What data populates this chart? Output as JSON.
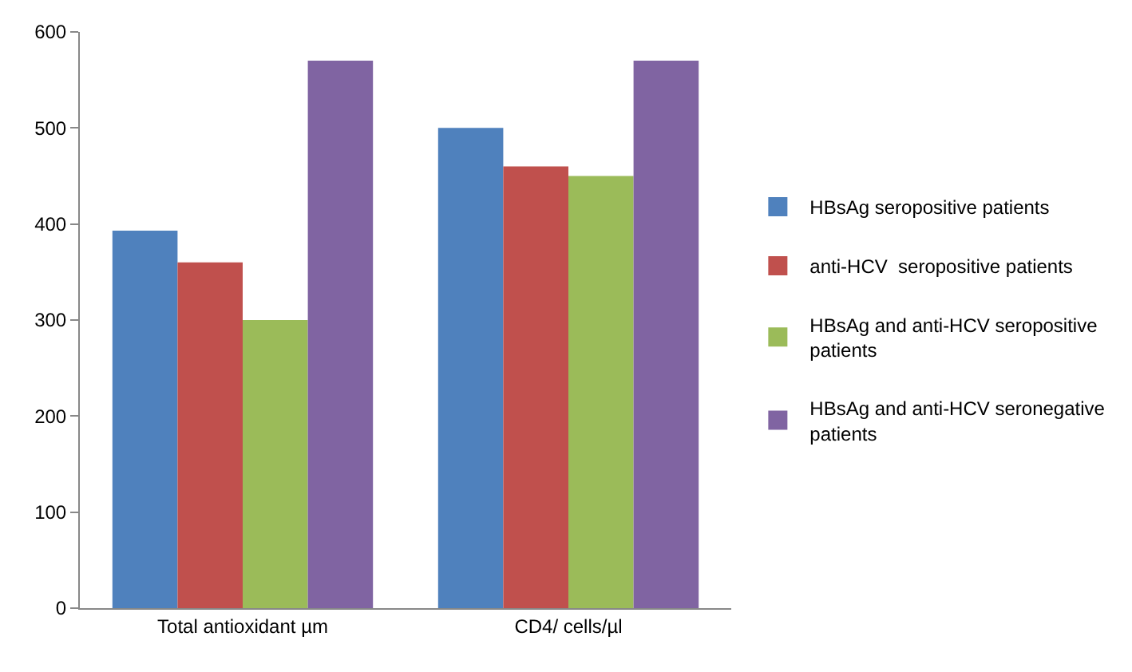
{
  "chart_data": {
    "type": "bar",
    "categories": [
      "Total antioxidant µm",
      "CD4/ cells/µl"
    ],
    "series": [
      {
        "name": "HBsAg seropositive patients",
        "color": "#4f81bd",
        "values": [
          393,
          500
        ]
      },
      {
        "name": "anti-HCV  seropositive patients",
        "color": "#c0504d",
        "values": [
          360,
          460
        ]
      },
      {
        "name": "HBsAg and anti-HCV seropositive patients",
        "color": "#9bbb59",
        "values": [
          300,
          450
        ]
      },
      {
        "name": "HBsAg and anti-HCV seronegative patients",
        "color": "#8064a2",
        "values": [
          570,
          570
        ]
      }
    ],
    "ylim": [
      0,
      600
    ],
    "yticks": [
      0,
      100,
      200,
      300,
      400,
      500,
      600
    ],
    "grid": false,
    "legend": "right"
  }
}
